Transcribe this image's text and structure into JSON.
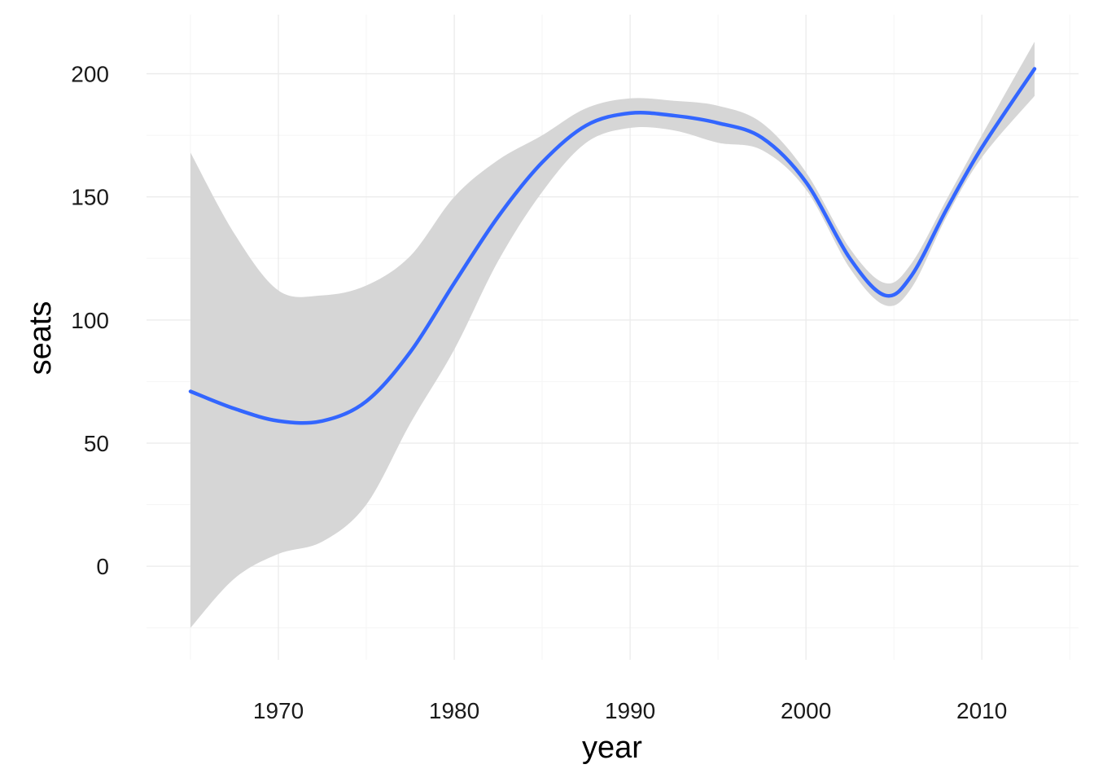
{
  "chart_data": {
    "type": "line",
    "xlabel": "year",
    "ylabel": "seats",
    "xlim": [
      1962.5,
      2015.5
    ],
    "ylim": [
      -38,
      224
    ],
    "x_major_ticks": [
      1970,
      1980,
      1990,
      2000,
      2010
    ],
    "x_minor_ticks": [
      1965,
      1975,
      1985,
      1995,
      2005,
      2015
    ],
    "y_major_ticks": [
      0,
      50,
      100,
      150,
      200
    ],
    "y_minor_ticks": [
      -25,
      25,
      75,
      125,
      175
    ],
    "x_tick_labels": [
      "1970",
      "1980",
      "1990",
      "2000",
      "2010"
    ],
    "y_tick_labels": [
      "0",
      "50",
      "100",
      "150",
      "200"
    ],
    "grid": true,
    "colors": {
      "line": "#3366ff",
      "ribbon": "#d6d6d6",
      "grid_major": "#ebebeb",
      "grid_minor": "#f5f5f5"
    },
    "series": [
      {
        "x": [
          1965,
          1967.5,
          1970,
          1972.5,
          1975,
          1977.5,
          1980,
          1982.5,
          1985,
          1987.5,
          1990,
          1992.5,
          1995,
          1997.5,
          2000,
          2002.5,
          2004.5,
          2006,
          2008,
          2010,
          2013
        ],
        "y": [
          71,
          64,
          59,
          59,
          67,
          87,
          115,
          142,
          164,
          179,
          184,
          183,
          180,
          174,
          156,
          125,
          110,
          118,
          145,
          170,
          202
        ],
        "lower": [
          -25,
          -5,
          5,
          10,
          25,
          58,
          88,
          124,
          152,
          172,
          178,
          177,
          172,
          169,
          153,
          121,
          106,
          113,
          142,
          166,
          191
        ],
        "upper": [
          168,
          135,
          112,
          110,
          114,
          126,
          150,
          165,
          175,
          186,
          190,
          189,
          187,
          180,
          160,
          129,
          115,
          123,
          149,
          175,
          213
        ]
      }
    ]
  }
}
